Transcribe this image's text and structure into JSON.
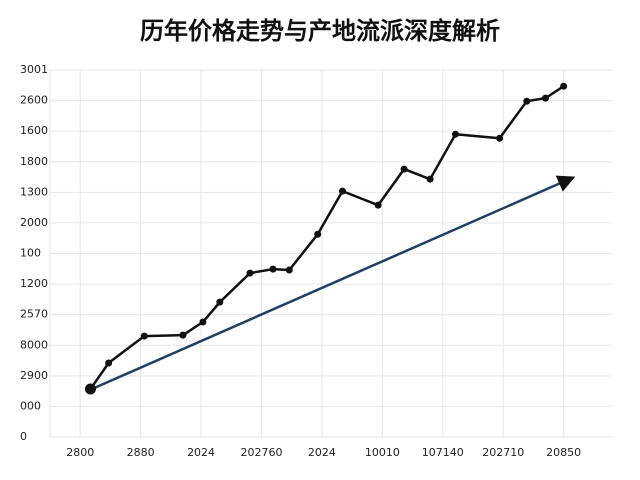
{
  "chart_data": {
    "type": "line",
    "title": "历年价格走势与产地流派深度解析",
    "x": [
      0.17,
      0.47,
      1.06,
      1.7,
      2.03,
      2.31,
      2.81,
      3.19,
      3.46,
      3.93,
      4.34,
      4.93,
      5.36,
      5.79,
      6.21,
      6.94,
      7.39,
      7.7,
      8.0
    ],
    "series": [
      {
        "color": "#111111",
        "values": [
          1.57,
          2.42,
          3.3,
          3.33,
          3.76,
          4.41,
          5.36,
          5.49,
          5.46,
          6.63,
          8.04,
          7.58,
          8.76,
          8.43,
          9.9,
          9.77,
          10.98,
          11.08,
          11.47
        ]
      }
    ],
    "xlim": [
      -0.5,
      8.8
    ],
    "xticks": [
      {
        "value": 0,
        "label": "2800"
      },
      {
        "value": 1,
        "label": "2880"
      },
      {
        "value": 2,
        "label": "2024"
      },
      {
        "value": 3,
        "label": "202760"
      },
      {
        "value": 4,
        "label": "2024"
      },
      {
        "value": 5,
        "label": "10010"
      },
      {
        "value": 6,
        "label": "107140"
      },
      {
        "value": 7,
        "label": "202710"
      },
      {
        "value": 8,
        "label": "20850"
      }
    ],
    "ylim": [
      0,
      12
    ],
    "yticks": [
      {
        "value": 0,
        "label": "0"
      },
      {
        "value": 1,
        "label": "000"
      },
      {
        "value": 2,
        "label": "2900"
      },
      {
        "value": 3,
        "label": "8000"
      },
      {
        "value": 4,
        "label": "2570"
      },
      {
        "value": 5,
        "label": "1200"
      },
      {
        "value": 6,
        "label": "100"
      },
      {
        "value": 7,
        "label": "2000"
      },
      {
        "value": 8,
        "label": "1300"
      },
      {
        "value": 9,
        "label": "1800"
      },
      {
        "value": 10,
        "label": "1600"
      },
      {
        "value": 11,
        "label": "2600"
      },
      {
        "value": 12,
        "label": "3001"
      }
    ],
    "grid": true
  }
}
